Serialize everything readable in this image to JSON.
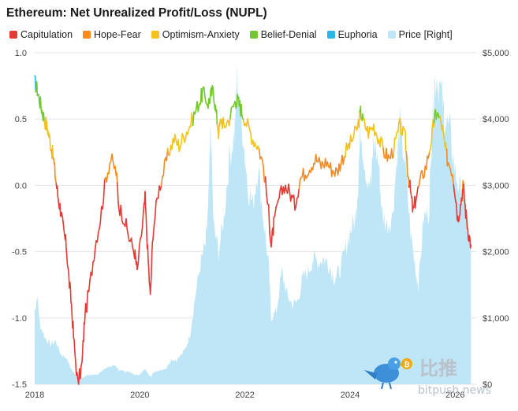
{
  "chart_data": {
    "type": "line",
    "title": "Ethereum: Net Unrealized Profit/Loss (NUPL)",
    "series": [
      {
        "name": "Capitulation",
        "color": "#e53935"
      },
      {
        "name": "Hope-Fear",
        "color": "#f58a1f"
      },
      {
        "name": "Optimism-Anxiety",
        "color": "#f3c21b"
      },
      {
        "name": "Belief-Denial",
        "color": "#72c92d"
      },
      {
        "name": "Euphoria",
        "color": "#29b6e8"
      },
      {
        "name": "Price [Right]",
        "color": "#bfe6f7"
      }
    ],
    "x_range": [
      2018.0,
      2026.4
    ],
    "x_ticks": [
      "2018",
      "2020",
      "2022",
      "2024",
      "2026"
    ],
    "ylim_left": [
      -1.5,
      1.0
    ],
    "y_ticks_left": [
      "1.0",
      "0.5",
      "0.0",
      "-0.5",
      "-1.0",
      "-1.5"
    ],
    "ylim_right": [
      0,
      5000
    ],
    "y_ticks_right": [
      "$5,000",
      "$4,000",
      "$3,000",
      "$2,000",
      "$1,000",
      "$0"
    ],
    "nupl_points": [
      [
        2018.0,
        0.78
      ],
      [
        2018.05,
        0.72
      ],
      [
        2018.1,
        0.63
      ],
      [
        2018.15,
        0.55
      ],
      [
        2018.2,
        0.48
      ],
      [
        2018.25,
        0.42
      ],
      [
        2018.3,
        0.32
      ],
      [
        2018.35,
        0.22
      ],
      [
        2018.4,
        0.05
      ],
      [
        2018.45,
        -0.1
      ],
      [
        2018.5,
        -0.2
      ],
      [
        2018.55,
        -0.35
      ],
      [
        2018.6,
        -0.45
      ],
      [
        2018.65,
        -0.7
      ],
      [
        2018.7,
        -0.9
      ],
      [
        2018.75,
        -1.2
      ],
      [
        2018.82,
        -1.5
      ],
      [
        2018.9,
        -1.35
      ],
      [
        2018.95,
        -1.0
      ],
      [
        2019.05,
        -0.75
      ],
      [
        2019.15,
        -0.45
      ],
      [
        2019.25,
        -0.25
      ],
      [
        2019.35,
        0.05
      ],
      [
        2019.45,
        0.2
      ],
      [
        2019.55,
        0.1
      ],
      [
        2019.6,
        -0.15
      ],
      [
        2019.7,
        -0.25
      ],
      [
        2019.8,
        -0.4
      ],
      [
        2019.9,
        -0.5
      ],
      [
        2019.95,
        -0.65
      ],
      [
        2020.05,
        -0.3
      ],
      [
        2020.1,
        -0.1
      ],
      [
        2020.15,
        -0.5
      ],
      [
        2020.2,
        -0.85
      ],
      [
        2020.25,
        -0.35
      ],
      [
        2020.35,
        -0.05
      ],
      [
        2020.45,
        0.1
      ],
      [
        2020.55,
        0.25
      ],
      [
        2020.65,
        0.35
      ],
      [
        2020.75,
        0.3
      ],
      [
        2020.85,
        0.38
      ],
      [
        2020.95,
        0.45
      ],
      [
        2021.05,
        0.55
      ],
      [
        2021.15,
        0.65
      ],
      [
        2021.2,
        0.7
      ],
      [
        2021.3,
        0.62
      ],
      [
        2021.35,
        0.68
      ],
      [
        2021.4,
        0.72
      ],
      [
        2021.45,
        0.55
      ],
      [
        2021.5,
        0.4
      ],
      [
        2021.55,
        0.5
      ],
      [
        2021.6,
        0.45
      ],
      [
        2021.7,
        0.5
      ],
      [
        2021.8,
        0.62
      ],
      [
        2021.85,
        0.65
      ],
      [
        2021.9,
        0.6
      ],
      [
        2021.95,
        0.55
      ],
      [
        2022.05,
        0.45
      ],
      [
        2022.15,
        0.35
      ],
      [
        2022.25,
        0.3
      ],
      [
        2022.35,
        0.15
      ],
      [
        2022.45,
        -0.2
      ],
      [
        2022.5,
        -0.45
      ],
      [
        2022.55,
        -0.3
      ],
      [
        2022.65,
        -0.1
      ],
      [
        2022.75,
        0.0
      ],
      [
        2022.85,
        -0.05
      ],
      [
        2022.95,
        -0.15
      ],
      [
        2023.05,
        0.05
      ],
      [
        2023.15,
        0.1
      ],
      [
        2023.25,
        0.15
      ],
      [
        2023.35,
        0.2
      ],
      [
        2023.45,
        0.15
      ],
      [
        2023.55,
        0.18
      ],
      [
        2023.65,
        0.12
      ],
      [
        2023.75,
        0.1
      ],
      [
        2023.85,
        0.2
      ],
      [
        2023.95,
        0.28
      ],
      [
        2024.05,
        0.35
      ],
      [
        2024.15,
        0.45
      ],
      [
        2024.2,
        0.55
      ],
      [
        2024.25,
        0.48
      ],
      [
        2024.35,
        0.4
      ],
      [
        2024.45,
        0.45
      ],
      [
        2024.55,
        0.35
      ],
      [
        2024.65,
        0.25
      ],
      [
        2024.75,
        0.2
      ],
      [
        2024.85,
        0.3
      ],
      [
        2024.95,
        0.45
      ],
      [
        2025.05,
        0.35
      ],
      [
        2025.1,
        0.1
      ],
      [
        2025.15,
        -0.05
      ],
      [
        2025.2,
        -0.2
      ],
      [
        2025.25,
        -0.1
      ],
      [
        2025.35,
        0.05
      ],
      [
        2025.45,
        0.15
      ],
      [
        2025.55,
        0.35
      ],
      [
        2025.6,
        0.5
      ],
      [
        2025.65,
        0.55
      ],
      [
        2025.75,
        0.45
      ],
      [
        2025.8,
        0.3
      ],
      [
        2025.85,
        0.2
      ],
      [
        2025.95,
        0.1
      ],
      [
        2026.0,
        -0.05
      ],
      [
        2026.05,
        -0.25
      ],
      [
        2026.1,
        -0.15
      ],
      [
        2026.15,
        0.0
      ],
      [
        2026.2,
        -0.2
      ],
      [
        2026.25,
        -0.35
      ],
      [
        2026.3,
        -0.45
      ]
    ],
    "price_points": [
      [
        2018.0,
        1100
      ],
      [
        2018.05,
        1350
      ],
      [
        2018.1,
        900
      ],
      [
        2018.2,
        700
      ],
      [
        2018.3,
        600
      ],
      [
        2018.4,
        650
      ],
      [
        2018.5,
        450
      ],
      [
        2018.6,
        400
      ],
      [
        2018.7,
        220
      ],
      [
        2018.8,
        120
      ],
      [
        2018.9,
        90
      ],
      [
        2019.0,
        140
      ],
      [
        2019.2,
        150
      ],
      [
        2019.4,
        250
      ],
      [
        2019.5,
        300
      ],
      [
        2019.6,
        220
      ],
      [
        2019.8,
        180
      ],
      [
        2019.95,
        130
      ],
      [
        2020.1,
        220
      ],
      [
        2020.2,
        120
      ],
      [
        2020.3,
        200
      ],
      [
        2020.5,
        240
      ],
      [
        2020.6,
        380
      ],
      [
        2020.7,
        360
      ],
      [
        2020.85,
        500
      ],
      [
        2020.95,
        730
      ],
      [
        2021.05,
        1300
      ],
      [
        2021.15,
        1800
      ],
      [
        2021.25,
        2100
      ],
      [
        2021.3,
        2600
      ],
      [
        2021.35,
        3900
      ],
      [
        2021.4,
        2400
      ],
      [
        2021.5,
        2000
      ],
      [
        2021.6,
        2500
      ],
      [
        2021.7,
        3400
      ],
      [
        2021.8,
        3800
      ],
      [
        2021.85,
        4600
      ],
      [
        2021.95,
        3900
      ],
      [
        2022.05,
        3000
      ],
      [
        2022.15,
        2700
      ],
      [
        2022.25,
        3300
      ],
      [
        2022.35,
        2500
      ],
      [
        2022.45,
        1800
      ],
      [
        2022.5,
        1000
      ],
      [
        2022.6,
        1100
      ],
      [
        2022.7,
        1700
      ],
      [
        2022.8,
        1350
      ],
      [
        2022.9,
        1200
      ],
      [
        2023.0,
        1250
      ],
      [
        2023.1,
        1600
      ],
      [
        2023.2,
        1700
      ],
      [
        2023.3,
        1900
      ],
      [
        2023.4,
        1850
      ],
      [
        2023.5,
        1900
      ],
      [
        2023.6,
        1800
      ],
      [
        2023.7,
        1600
      ],
      [
        2023.8,
        1700
      ],
      [
        2023.9,
        2000
      ],
      [
        2024.0,
        2300
      ],
      [
        2024.1,
        2500
      ],
      [
        2024.15,
        3000
      ],
      [
        2024.2,
        3900
      ],
      [
        2024.3,
        3200
      ],
      [
        2024.4,
        3000
      ],
      [
        2024.45,
        3700
      ],
      [
        2024.55,
        3300
      ],
      [
        2024.6,
        2600
      ],
      [
        2024.7,
        2400
      ],
      [
        2024.8,
        2500
      ],
      [
        2024.9,
        3500
      ],
      [
        2024.95,
        3900
      ],
      [
        2025.05,
        3300
      ],
      [
        2025.15,
        2300
      ],
      [
        2025.25,
        1700
      ],
      [
        2025.3,
        1500
      ],
      [
        2025.4,
        2500
      ],
      [
        2025.5,
        2600
      ],
      [
        2025.55,
        3700
      ],
      [
        2025.6,
        4500
      ],
      [
        2025.65,
        4700
      ],
      [
        2025.75,
        4300
      ],
      [
        2025.8,
        4000
      ],
      [
        2025.9,
        3800
      ],
      [
        2026.0,
        3200
      ],
      [
        2026.1,
        2900
      ],
      [
        2026.2,
        2700
      ],
      [
        2026.25,
        2300
      ],
      [
        2026.3,
        2000
      ]
    ],
    "thresholds": {
      "euphoria": 0.75,
      "belief": 0.5,
      "optimism": 0.25,
      "hope": 0.0
    }
  },
  "watermark": {
    "brand_cn": "比推",
    "brand_site": "bitpush.news"
  }
}
